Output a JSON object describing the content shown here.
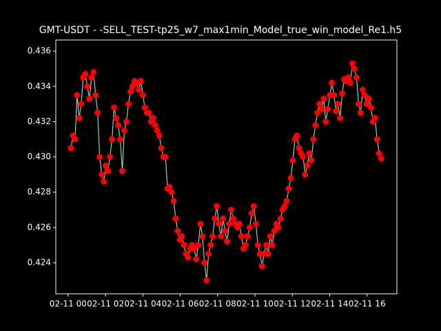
{
  "chart_data": {
    "type": "line",
    "title": "GMT-USDT - -SELL_TEST-tp25_w7_max1min_Model_true_win_model_Re1.h5",
    "x": [
      0.15,
      0.26,
      0.37,
      0.48,
      0.59,
      0.7,
      0.81,
      0.92,
      1.03,
      1.14,
      1.25,
      1.36,
      1.47,
      1.58,
      1.69,
      1.8,
      1.91,
      2.02,
      2.13,
      2.24,
      2.35,
      2.46,
      2.57,
      2.68,
      2.79,
      2.9,
      3.01,
      3.12,
      3.23,
      3.34,
      3.45,
      3.56,
      3.67,
      3.78,
      3.89,
      4,
      4.11,
      4.22,
      4.33,
      4.44,
      4.55,
      4.66,
      4.77,
      4.88,
      4.99,
      5.1,
      5.21,
      5.32,
      5.43,
      5.54,
      5.65,
      5.76,
      5.87,
      5.98,
      6.09,
      6.2,
      6.31,
      6.42,
      6.53,
      6.64,
      6.75,
      6.86,
      6.97,
      7.08,
      7.19,
      7.3,
      7.41,
      7.52,
      7.63,
      7.74,
      7.85,
      7.96,
      8.07,
      8.18,
      8.29,
      8.4,
      8.51,
      8.62,
      8.73,
      8.84,
      8.95,
      9.06,
      9.17,
      9.28,
      9.39,
      9.5,
      9.61,
      9.72,
      9.83,
      9.94,
      10.05,
      10.16,
      10.27,
      10.38,
      10.49,
      10.6,
      10.71,
      10.82,
      10.93,
      11.04,
      11.15,
      11.26,
      11.37,
      11.48,
      11.59,
      11.7,
      11.81,
      11.92,
      12.03,
      12.14,
      12.25,
      12.36,
      12.47,
      12.58,
      12.69,
      12.8,
      12.91,
      13.02,
      13.13,
      13.24,
      13.35,
      13.46,
      13.57,
      13.68,
      13.79,
      13.9,
      14.01,
      14.12,
      14.23,
      14.34,
      14.45,
      14.56,
      14.67,
      14.78,
      14.89,
      15,
      15.11,
      15.22,
      15.33,
      15.44,
      15.55,
      15.66,
      15.77,
      15.88,
      15.99,
      16.1,
      16.21,
      16.32,
      16.43,
      16.54,
      16.65,
      16.76
    ],
    "series": [
      {
        "color": "#8dd3c7",
        "marker_color": "#ff0000",
        "values": [
          0.4305,
          0.4312,
          0.431,
          0.4335,
          0.4322,
          0.433,
          0.4345,
          0.4347,
          0.434,
          0.4333,
          0.4345,
          0.4348,
          0.4335,
          0.4325,
          0.43,
          0.429,
          0.4286,
          0.4295,
          0.4292,
          0.43,
          0.431,
          0.4328,
          0.4322,
          0.4318,
          0.431,
          0.4292,
          0.4315,
          0.432,
          0.433,
          0.4337,
          0.434,
          0.4343,
          0.4342,
          0.4338,
          0.4343,
          0.4335,
          0.4328,
          0.4325,
          0.4325,
          0.432,
          0.4322,
          0.4318,
          0.4315,
          0.4312,
          0.4305,
          0.43,
          0.43,
          0.4282,
          0.4283,
          0.428,
          0.4275,
          0.4265,
          0.4258,
          0.4253,
          0.4255,
          0.425,
          0.4245,
          0.4243,
          0.4248,
          0.425,
          0.4248,
          0.4242,
          0.425,
          0.4262,
          0.4255,
          0.424,
          0.423,
          0.4245,
          0.425,
          0.4255,
          0.4265,
          0.4272,
          0.4262,
          0.4255,
          0.4265,
          0.4258,
          0.4252,
          0.4262,
          0.427,
          0.4265,
          0.4262,
          0.426,
          0.4262,
          0.4255,
          0.4248,
          0.425,
          0.4255,
          0.426,
          0.4268,
          0.4272,
          0.4262,
          0.425,
          0.4245,
          0.4238,
          0.4245,
          0.425,
          0.4245,
          0.4255,
          0.425,
          0.4258,
          0.4262,
          0.426,
          0.4265,
          0.427,
          0.4272,
          0.4275,
          0.4282,
          0.4288,
          0.4298,
          0.431,
          0.4312,
          0.4305,
          0.4302,
          0.43,
          0.429,
          0.4295,
          0.4302,
          0.4298,
          0.431,
          0.4318,
          0.4325,
          0.433,
          0.4327,
          0.4333,
          0.432,
          0.4327,
          0.4335,
          0.4342,
          0.4335,
          0.4326,
          0.433,
          0.4322,
          0.4336,
          0.4344,
          0.4343,
          0.4345,
          0.4342,
          0.4353,
          0.435,
          0.4345,
          0.433,
          0.4325,
          0.4338,
          0.4335,
          0.433,
          0.4333,
          0.4328,
          0.432,
          0.4322,
          0.431,
          0.4302,
          0.4299
        ]
      }
    ],
    "xlim": [
      -0.66,
      17.6
    ],
    "xticks": [
      {
        "value": 0,
        "label": "02-11 00"
      },
      {
        "value": 2,
        "label": "02-11 02"
      },
      {
        "value": 4,
        "label": "02-11 04"
      },
      {
        "value": 6,
        "label": "02-11 06"
      },
      {
        "value": 8,
        "label": "02-11 08"
      },
      {
        "value": 10,
        "label": "02-11 10"
      },
      {
        "value": 12,
        "label": "02-11 12"
      },
      {
        "value": 14,
        "label": "02-11 14"
      },
      {
        "value": 16,
        "label": "02-11 16"
      }
    ],
    "ylim": [
      0.42224,
      0.43663
    ],
    "yticks": [
      0.424,
      0.426,
      0.428,
      {
        "value": 0.43,
        "label": "0.430"
      },
      0.432,
      0.434,
      0.436
    ],
    "grid": false
  }
}
